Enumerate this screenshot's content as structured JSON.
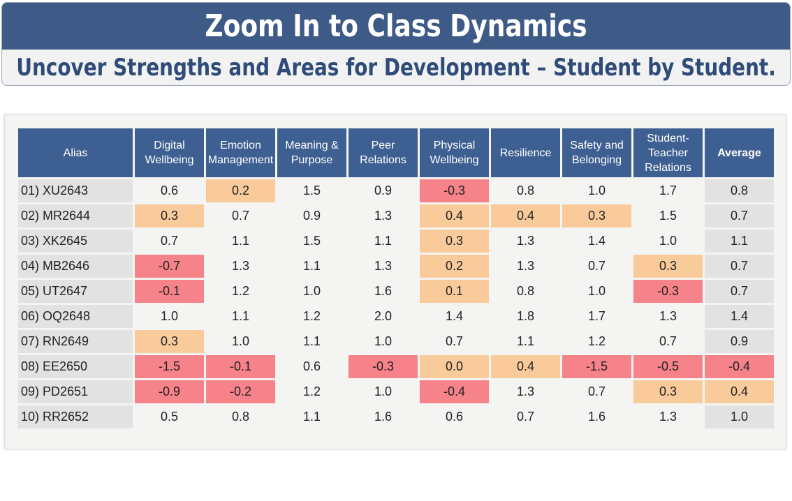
{
  "banner": {
    "title": "Zoom In to Class Dynamics",
    "subtitle": "Uncover Strengths and Areas for Development – Student by Student."
  },
  "table": {
    "headers": [
      "Alias",
      "Digital Wellbeing",
      "Emotion Management",
      "Meaning & Purpose",
      "Peer Relations",
      "Physical Wellbeing",
      "Resilience",
      "Safety and Belonging",
      "Student-Teacher Relations",
      "Average"
    ],
    "colors": {
      "red": "#f6828a",
      "orange": "#f9cb9b",
      "header": "#3e5f91"
    },
    "rows": [
      {
        "alias": "01) XU2643",
        "values": [
          "0.6",
          "0.2",
          "1.5",
          "0.9",
          "-0.3",
          "0.8",
          "1.0",
          "1.7",
          "0.8"
        ],
        "flags": [
          "",
          "orange",
          "",
          "",
          "red",
          "",
          "",
          "",
          ""
        ]
      },
      {
        "alias": "02) MR2644",
        "values": [
          "0.3",
          "0.7",
          "0.9",
          "1.3",
          "0.4",
          "0.4",
          "0.3",
          "1.5",
          "0.7"
        ],
        "flags": [
          "orange",
          "",
          "",
          "",
          "orange",
          "orange",
          "orange",
          "",
          ""
        ]
      },
      {
        "alias": "03) XK2645",
        "values": [
          "0.7",
          "1.1",
          "1.5",
          "1.1",
          "0.3",
          "1.3",
          "1.4",
          "1.0",
          "1.1"
        ],
        "flags": [
          "",
          "",
          "",
          "",
          "orange",
          "",
          "",
          "",
          ""
        ]
      },
      {
        "alias": "04) MB2646",
        "values": [
          "-0.7",
          "1.3",
          "1.1",
          "1.3",
          "0.2",
          "1.3",
          "0.7",
          "0.3",
          "0.7"
        ],
        "flags": [
          "red",
          "",
          "",
          "",
          "orange",
          "",
          "",
          "orange",
          ""
        ]
      },
      {
        "alias": "05) UT2647",
        "values": [
          "-0.1",
          "1.2",
          "1.0",
          "1.6",
          "0.1",
          "0.8",
          "1.0",
          "-0.3",
          "0.7"
        ],
        "flags": [
          "red",
          "",
          "",
          "",
          "orange",
          "",
          "",
          "red",
          ""
        ]
      },
      {
        "alias": "06) OQ2648",
        "values": [
          "1.0",
          "1.1",
          "1.2",
          "2.0",
          "1.4",
          "1.8",
          "1.7",
          "1.3",
          "1.4"
        ],
        "flags": [
          "",
          "",
          "",
          "",
          "",
          "",
          "",
          "",
          ""
        ]
      },
      {
        "alias": "07) RN2649",
        "values": [
          "0.3",
          "1.0",
          "1.1",
          "1.0",
          "0.7",
          "1.1",
          "1.2",
          "0.7",
          "0.9"
        ],
        "flags": [
          "orange",
          "",
          "",
          "",
          "",
          "",
          "",
          "",
          ""
        ]
      },
      {
        "alias": "08) EE2650",
        "values": [
          "-1.5",
          "-0.1",
          "0.6",
          "-0.3",
          "0.0",
          "0.4",
          "-1.5",
          "-0.5",
          "-0.4"
        ],
        "flags": [
          "red",
          "red",
          "",
          "red",
          "orange",
          "orange",
          "red",
          "red",
          "red"
        ]
      },
      {
        "alias": "09) PD2651",
        "values": [
          "-0.9",
          "-0.2",
          "1.2",
          "1.0",
          "-0.4",
          "1.3",
          "0.7",
          "0.3",
          "0.4"
        ],
        "flags": [
          "red",
          "red",
          "",
          "",
          "red",
          "",
          "",
          "orange",
          "orange"
        ]
      },
      {
        "alias": "10) RR2652",
        "values": [
          "0.5",
          "0.8",
          "1.1",
          "1.6",
          "0.6",
          "0.7",
          "1.6",
          "1.3",
          "1.0"
        ],
        "flags": [
          "",
          "",
          "",
          "",
          "",
          "",
          "",
          "",
          ""
        ]
      }
    ]
  }
}
